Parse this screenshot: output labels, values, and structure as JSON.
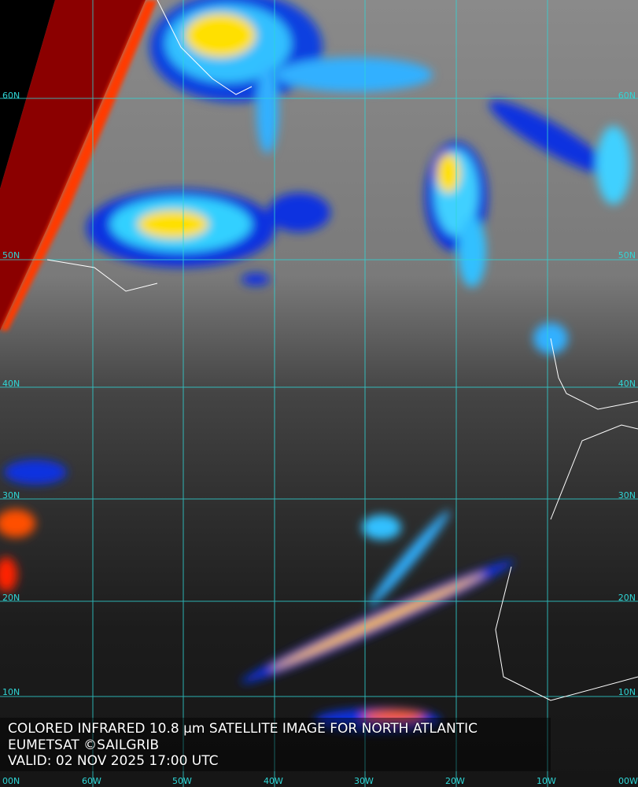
{
  "caption": {
    "title": "COLORED INFRARED 10.8 µm SATELLITE IMAGE FOR NORTH ATLANTIC",
    "credit": "EUMETSAT ©SAILGRIB",
    "valid": "VALID:  02 NOV 2025 17:00 UTC"
  },
  "grid": {
    "latitudes_left": [
      "60N",
      "50N",
      "40N",
      "30N",
      "20N",
      "10N",
      "00N"
    ],
    "latitudes_right": [
      "60N",
      "50N",
      "40N",
      "30N",
      "20N",
      "10N"
    ],
    "longitudes": [
      "60W",
      "50W",
      "40W",
      "30W",
      "20W",
      "10W",
      "00W"
    ],
    "line_color": "#2fd6d6"
  },
  "palette": {
    "cold_deep": "#8b0000",
    "red": "#ff2000",
    "yellow": "#ffee00",
    "green": "#40e080",
    "cyan": "#30d0ff",
    "blue": "#1030e0"
  }
}
